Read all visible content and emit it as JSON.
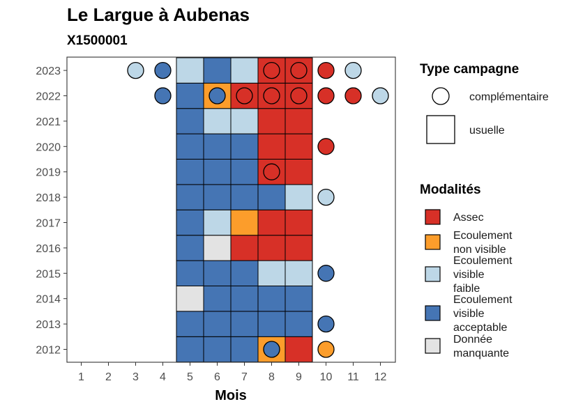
{
  "chart_data": {
    "type": "heatmap",
    "title": "Le Largue à Aubenas",
    "subtitle": "X1500001",
    "xlabel": "Mois",
    "ylabel": "",
    "x_ticks": [
      "1",
      "2",
      "3",
      "4",
      "5",
      "6",
      "7",
      "8",
      "9",
      "10",
      "11",
      "12"
    ],
    "y_ticks": [
      "2012",
      "2013",
      "2014",
      "2015",
      "2016",
      "2017",
      "2018",
      "2019",
      "2020",
      "2021",
      "2022",
      "2023"
    ],
    "grid": false,
    "colors": {
      "assec": "#d73027",
      "non_visible": "#fc9d2b",
      "faible": "#bdd7e7",
      "acceptable": "#4575b4",
      "manquante": "#e3e3e3"
    },
    "usual": [
      {
        "year": 2012,
        "month": 5,
        "mod": "acceptable"
      },
      {
        "year": 2012,
        "month": 6,
        "mod": "acceptable"
      },
      {
        "year": 2012,
        "month": 7,
        "mod": "acceptable"
      },
      {
        "year": 2012,
        "month": 8,
        "mod": "non_visible"
      },
      {
        "year": 2012,
        "month": 9,
        "mod": "assec"
      },
      {
        "year": 2013,
        "month": 5,
        "mod": "acceptable"
      },
      {
        "year": 2013,
        "month": 6,
        "mod": "acceptable"
      },
      {
        "year": 2013,
        "month": 7,
        "mod": "acceptable"
      },
      {
        "year": 2013,
        "month": 8,
        "mod": "acceptable"
      },
      {
        "year": 2013,
        "month": 9,
        "mod": "acceptable"
      },
      {
        "year": 2014,
        "month": 5,
        "mod": "manquante"
      },
      {
        "year": 2014,
        "month": 6,
        "mod": "acceptable"
      },
      {
        "year": 2014,
        "month": 7,
        "mod": "acceptable"
      },
      {
        "year": 2014,
        "month": 8,
        "mod": "acceptable"
      },
      {
        "year": 2014,
        "month": 9,
        "mod": "acceptable"
      },
      {
        "year": 2015,
        "month": 5,
        "mod": "acceptable"
      },
      {
        "year": 2015,
        "month": 6,
        "mod": "acceptable"
      },
      {
        "year": 2015,
        "month": 7,
        "mod": "acceptable"
      },
      {
        "year": 2015,
        "month": 8,
        "mod": "faible"
      },
      {
        "year": 2015,
        "month": 9,
        "mod": "faible"
      },
      {
        "year": 2016,
        "month": 5,
        "mod": "acceptable"
      },
      {
        "year": 2016,
        "month": 6,
        "mod": "manquante"
      },
      {
        "year": 2016,
        "month": 7,
        "mod": "assec"
      },
      {
        "year": 2016,
        "month": 8,
        "mod": "assec"
      },
      {
        "year": 2016,
        "month": 9,
        "mod": "assec"
      },
      {
        "year": 2017,
        "month": 5,
        "mod": "acceptable"
      },
      {
        "year": 2017,
        "month": 6,
        "mod": "faible"
      },
      {
        "year": 2017,
        "month": 7,
        "mod": "non_visible"
      },
      {
        "year": 2017,
        "month": 8,
        "mod": "assec"
      },
      {
        "year": 2017,
        "month": 9,
        "mod": "assec"
      },
      {
        "year": 2018,
        "month": 5,
        "mod": "acceptable"
      },
      {
        "year": 2018,
        "month": 6,
        "mod": "acceptable"
      },
      {
        "year": 2018,
        "month": 7,
        "mod": "acceptable"
      },
      {
        "year": 2018,
        "month": 8,
        "mod": "acceptable"
      },
      {
        "year": 2018,
        "month": 9,
        "mod": "faible"
      },
      {
        "year": 2019,
        "month": 5,
        "mod": "acceptable"
      },
      {
        "year": 2019,
        "month": 6,
        "mod": "acceptable"
      },
      {
        "year": 2019,
        "month": 7,
        "mod": "acceptable"
      },
      {
        "year": 2019,
        "month": 8,
        "mod": "assec"
      },
      {
        "year": 2019,
        "month": 9,
        "mod": "assec"
      },
      {
        "year": 2020,
        "month": 5,
        "mod": "acceptable"
      },
      {
        "year": 2020,
        "month": 6,
        "mod": "acceptable"
      },
      {
        "year": 2020,
        "month": 7,
        "mod": "acceptable"
      },
      {
        "year": 2020,
        "month": 8,
        "mod": "assec"
      },
      {
        "year": 2020,
        "month": 9,
        "mod": "assec"
      },
      {
        "year": 2021,
        "month": 5,
        "mod": "acceptable"
      },
      {
        "year": 2021,
        "month": 6,
        "mod": "faible"
      },
      {
        "year": 2021,
        "month": 7,
        "mod": "faible"
      },
      {
        "year": 2021,
        "month": 8,
        "mod": "assec"
      },
      {
        "year": 2021,
        "month": 9,
        "mod": "assec"
      },
      {
        "year": 2022,
        "month": 5,
        "mod": "acceptable"
      },
      {
        "year": 2022,
        "month": 6,
        "mod": "non_visible"
      },
      {
        "year": 2022,
        "month": 7,
        "mod": "assec"
      },
      {
        "year": 2022,
        "month": 8,
        "mod": "assec"
      },
      {
        "year": 2022,
        "month": 9,
        "mod": "assec"
      },
      {
        "year": 2023,
        "month": 5,
        "mod": "faible"
      },
      {
        "year": 2023,
        "month": 6,
        "mod": "acceptable"
      },
      {
        "year": 2023,
        "month": 7,
        "mod": "faible"
      },
      {
        "year": 2023,
        "month": 8,
        "mod": "assec"
      },
      {
        "year": 2023,
        "month": 9,
        "mod": "assec"
      }
    ],
    "complementary": [
      {
        "year": 2012,
        "month": 8,
        "mod": "acceptable"
      },
      {
        "year": 2012,
        "month": 10,
        "mod": "non_visible"
      },
      {
        "year": 2013,
        "month": 10,
        "mod": "acceptable"
      },
      {
        "year": 2015,
        "month": 10,
        "mod": "acceptable"
      },
      {
        "year": 2018,
        "month": 10,
        "mod": "faible"
      },
      {
        "year": 2019,
        "month": 8,
        "mod": "assec"
      },
      {
        "year": 2020,
        "month": 10,
        "mod": "assec"
      },
      {
        "year": 2022,
        "month": 4,
        "mod": "acceptable"
      },
      {
        "year": 2022,
        "month": 6,
        "mod": "acceptable"
      },
      {
        "year": 2022,
        "month": 7,
        "mod": "assec"
      },
      {
        "year": 2022,
        "month": 8,
        "mod": "assec"
      },
      {
        "year": 2022,
        "month": 9,
        "mod": "assec"
      },
      {
        "year": 2022,
        "month": 10,
        "mod": "assec"
      },
      {
        "year": 2022,
        "month": 11,
        "mod": "assec"
      },
      {
        "year": 2022,
        "month": 12,
        "mod": "faible"
      },
      {
        "year": 2023,
        "month": 3,
        "mod": "faible"
      },
      {
        "year": 2023,
        "month": 4,
        "mod": "acceptable"
      },
      {
        "year": 2023,
        "month": 8,
        "mod": "assec"
      },
      {
        "year": 2023,
        "month": 9,
        "mod": "assec"
      },
      {
        "year": 2023,
        "month": 10,
        "mod": "assec"
      },
      {
        "year": 2023,
        "month": 11,
        "mod": "faible"
      }
    ],
    "legend_type": {
      "title": "Type campagne",
      "items": [
        {
          "key": "complementaire",
          "label": "complémentaire"
        },
        {
          "key": "usuelle",
          "label": "usuelle"
        }
      ]
    },
    "legend_mod": {
      "title": "Modalités",
      "items": [
        {
          "key": "assec",
          "lines": [
            "Assec"
          ]
        },
        {
          "key": "non_visible",
          "lines": [
            "Ecoulement",
            "non visible"
          ]
        },
        {
          "key": "faible",
          "lines": [
            "Ecoulement",
            "visible",
            "faible"
          ]
        },
        {
          "key": "acceptable",
          "lines": [
            "Ecoulement",
            "visible",
            "acceptable"
          ]
        },
        {
          "key": "manquante",
          "lines": [
            "Donnée",
            "manquante"
          ]
        }
      ]
    },
    "legend_placement": "right"
  }
}
